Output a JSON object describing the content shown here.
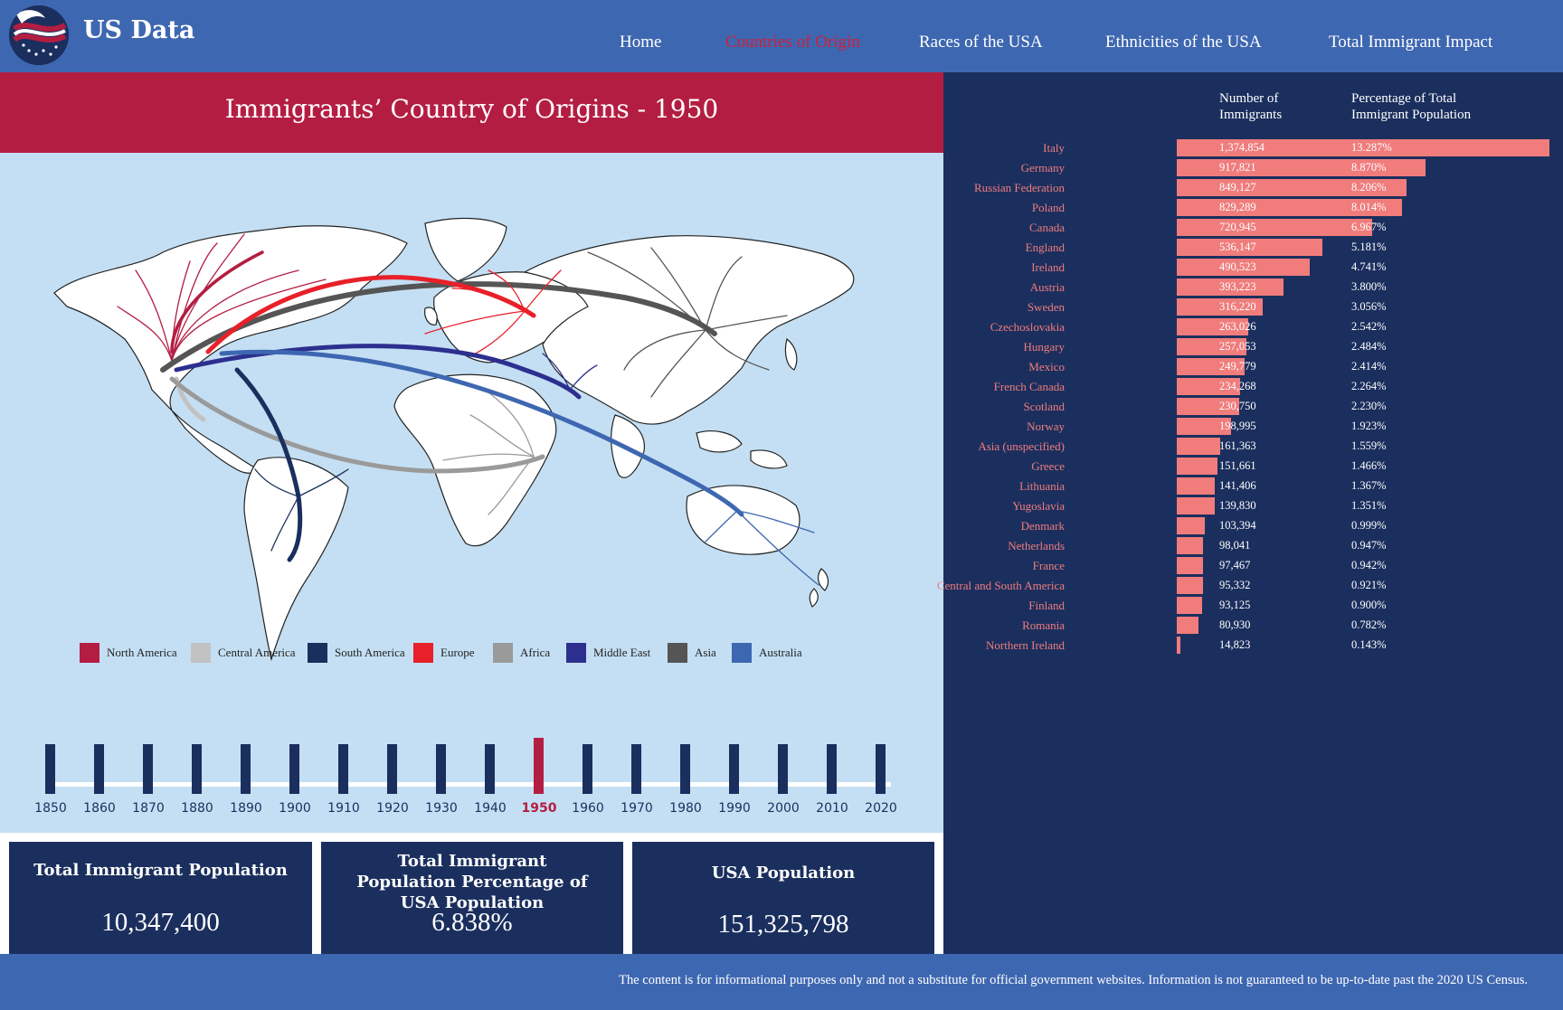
{
  "header": {
    "brand": "US Data",
    "nav": [
      {
        "label": "Home",
        "active": false
      },
      {
        "label": "Countries of Origin",
        "active": true
      },
      {
        "label": "Races of the USA",
        "active": false
      },
      {
        "label": "Ethnicities of the USA",
        "active": false
      },
      {
        "label": "Total Immigrant Impact",
        "active": false
      }
    ]
  },
  "page_title": "Immigrants’ Country of Origins - 1950",
  "legend": [
    {
      "label": "North America",
      "color": "#b41d42"
    },
    {
      "label": "Central America",
      "color": "#c2c2c2"
    },
    {
      "label": "South America",
      "color": "#1b2f5e"
    },
    {
      "label": "Europe",
      "color": "#e8202a"
    },
    {
      "label": "Africa",
      "color": "#9a9a9a"
    },
    {
      "label": "Middle East",
      "color": "#2d2f8f"
    },
    {
      "label": "Asia",
      "color": "#555555"
    },
    {
      "label": "Australia",
      "color": "#3e67b1"
    }
  ],
  "timeline": {
    "years": [
      "1850",
      "1860",
      "1870",
      "1880",
      "1890",
      "1900",
      "1910",
      "1920",
      "1930",
      "1940",
      "1950",
      "1960",
      "1970",
      "1980",
      "1990",
      "2000",
      "2010",
      "2020"
    ],
    "selected": "1950"
  },
  "stats": [
    {
      "title": "Total Immigrant Population",
      "value": "10,347,400"
    },
    {
      "title": "Total Immigrant Population Percentage of USA Population",
      "value": "6.838%"
    },
    {
      "title": "USA Population",
      "value": "151,325,798"
    }
  ],
  "table": {
    "col_number": "Number of Immigrants",
    "col_percent": "Percentage of Total Immigrant Population",
    "bar_color": "#f07c7c",
    "rows": [
      {
        "name": "Italy",
        "number": "1,374,854",
        "percent": "13.287%",
        "value": 1374854
      },
      {
        "name": "Germany",
        "number": "917,821",
        "percent": "8.870%",
        "value": 917821
      },
      {
        "name": "Russian Federation",
        "number": "849,127",
        "percent": "8.206%",
        "value": 849127
      },
      {
        "name": "Poland",
        "number": "829,289",
        "percent": "8.014%",
        "value": 829289
      },
      {
        "name": "Canada",
        "number": "720,945",
        "percent": "6.967%",
        "value": 720945
      },
      {
        "name": "England",
        "number": "536,147",
        "percent": "5.181%",
        "value": 536147
      },
      {
        "name": "Ireland",
        "number": "490,523",
        "percent": "4.741%",
        "value": 490523
      },
      {
        "name": "Austria",
        "number": "393,223",
        "percent": "3.800%",
        "value": 393223
      },
      {
        "name": "Sweden",
        "number": "316,220",
        "percent": "3.056%",
        "value": 316220
      },
      {
        "name": "Czechoslovakia",
        "number": "263,026",
        "percent": "2.542%",
        "value": 263026
      },
      {
        "name": "Hungary",
        "number": "257,053",
        "percent": "2.484%",
        "value": 257053
      },
      {
        "name": "Mexico",
        "number": "249,779",
        "percent": "2.414%",
        "value": 249779
      },
      {
        "name": "French Canada",
        "number": "234,268",
        "percent": "2.264%",
        "value": 234268
      },
      {
        "name": "Scotland",
        "number": "230,750",
        "percent": "2.230%",
        "value": 230750
      },
      {
        "name": "Norway",
        "number": "198,995",
        "percent": "1.923%",
        "value": 198995
      },
      {
        "name": "Asia (unspecified)",
        "number": "161,363",
        "percent": "1.559%",
        "value": 161363
      },
      {
        "name": "Greece",
        "number": "151,661",
        "percent": "1.466%",
        "value": 151661
      },
      {
        "name": "Lithuania",
        "number": "141,406",
        "percent": "1.367%",
        "value": 141406
      },
      {
        "name": "Yugoslavia",
        "number": "139,830",
        "percent": "1.351%",
        "value": 139830
      },
      {
        "name": "Denmark",
        "number": "103,394",
        "percent": "0.999%",
        "value": 103394
      },
      {
        "name": "Netherlands",
        "number": "98,041",
        "percent": "0.947%",
        "value": 98041
      },
      {
        "name": "France",
        "number": "97,467",
        "percent": "0.942%",
        "value": 97467
      },
      {
        "name": "Central and South America",
        "number": "95,332",
        "percent": "0.921%",
        "value": 95332
      },
      {
        "name": "Finland",
        "number": "93,125",
        "percent": "0.900%",
        "value": 93125
      },
      {
        "name": "Romania",
        "number": "80,930",
        "percent": "0.782%",
        "value": 80930
      },
      {
        "name": "Northern Ireland",
        "number": "14,823",
        "percent": "0.143%",
        "value": 14823
      }
    ]
  },
  "footer": "The content is for informational purposes only and not a substitute for official government websites. Information is not guaranteed to be up-to-date past the 2020 US Census."
}
